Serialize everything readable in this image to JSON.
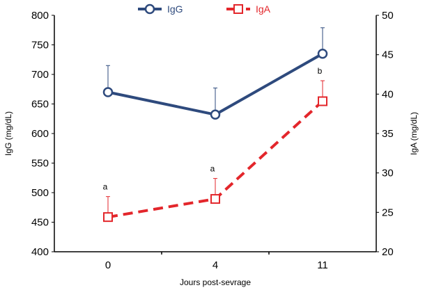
{
  "chart_data": {
    "type": "line",
    "xlabel": "Jours post-sevrage",
    "categories": [
      "0",
      "4",
      "11"
    ],
    "y_left": {
      "label": "IgG (mg/dL)",
      "lim": [
        400,
        800
      ],
      "ticks": [
        "400",
        "450",
        "500",
        "550",
        "600",
        "650",
        "700",
        "750",
        "800"
      ]
    },
    "y_right": {
      "label": "IgA (mg/dL)",
      "lim": [
        20,
        50
      ],
      "ticks": [
        "20",
        "25",
        "30",
        "35",
        "40",
        "45",
        "50"
      ]
    },
    "series": [
      {
        "name": "IgG",
        "axis": "left",
        "values": [
          670,
          632,
          735
        ],
        "errors": [
          45,
          45,
          44
        ],
        "color": "#2e4a7d",
        "marker": "circle",
        "dash": false,
        "annotations": [
          "",
          "",
          ""
        ]
      },
      {
        "name": "IgA",
        "axis": "right",
        "values": [
          24.4,
          26.7,
          39.1
        ],
        "errors": [
          2.6,
          2.6,
          2.6
        ],
        "color": "#e3262b",
        "marker": "square",
        "dash": true,
        "annotations": [
          "a",
          "a",
          "b"
        ]
      }
    ],
    "legend": "top"
  }
}
